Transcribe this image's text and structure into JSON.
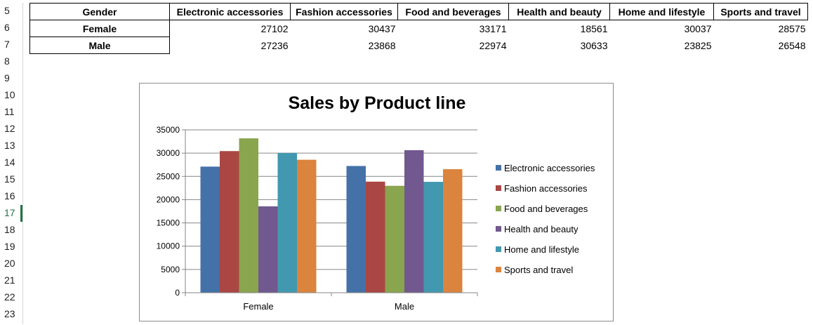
{
  "row_numbers": [
    "5",
    "6",
    "7",
    "8",
    "9",
    "10",
    "11",
    "12",
    "13",
    "14",
    "15",
    "16",
    "17",
    "18",
    "19",
    "20",
    "21",
    "22",
    "23"
  ],
  "active_row": "17",
  "table": {
    "header": [
      "Gender",
      "Electronic accessories",
      "Fashion accessories",
      "Food and beverages",
      "Health and beauty",
      "Home and lifestyle",
      "Sports and travel"
    ],
    "rows": [
      {
        "label": "Female",
        "values": [
          "27102",
          "30437",
          "33171",
          "18561",
          "30037",
          "28575"
        ]
      },
      {
        "label": "Male",
        "values": [
          "27236",
          "23868",
          "22974",
          "30633",
          "23825",
          "26548"
        ]
      }
    ]
  },
  "chart_data": {
    "type": "bar",
    "title": "Sales by Product line",
    "categories": [
      "Female",
      "Male"
    ],
    "series": [
      {
        "name": "Electronic accessories",
        "values": [
          27102,
          27236
        ],
        "color": "#4472a8"
      },
      {
        "name": "Fashion accessories",
        "values": [
          30437,
          23868
        ],
        "color": "#aa4643"
      },
      {
        "name": "Food and beverages",
        "values": [
          33171,
          22974
        ],
        "color": "#89a54e"
      },
      {
        "name": "Health and beauty",
        "values": [
          18561,
          30633
        ],
        "color": "#71588f"
      },
      {
        "name": "Home and lifestyle",
        "values": [
          30037,
          23825
        ],
        "color": "#4198af"
      },
      {
        "name": "Sports and travel",
        "values": [
          28575,
          26548
        ],
        "color": "#db843d"
      }
    ],
    "ylim": [
      0,
      35000
    ],
    "yticks": [
      "0",
      "5000",
      "10000",
      "15000",
      "20000",
      "25000",
      "30000",
      "35000"
    ],
    "grid": true,
    "legend": "right"
  }
}
